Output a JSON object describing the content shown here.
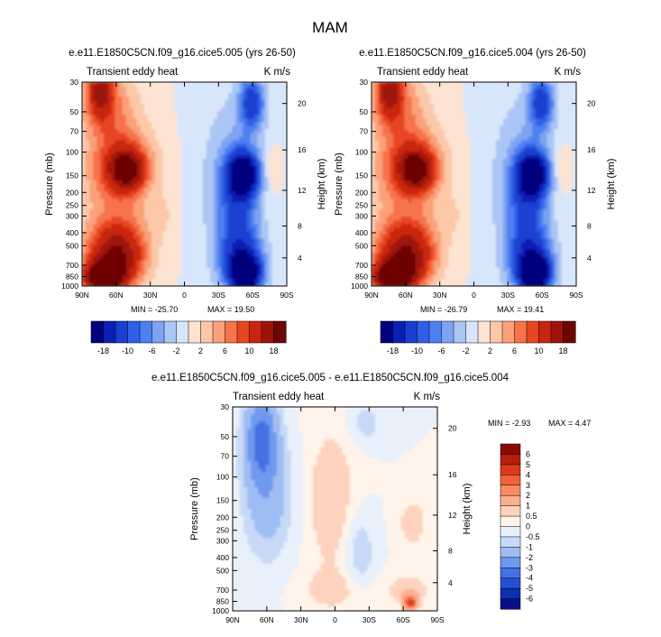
{
  "figure_title": "MAM",
  "units": "K m/s",
  "panel_label": "Transient eddy heat",
  "xlabel": "",
  "ylabel_left": "Pressure (mb)",
  "ylabel_right": "Height (km)",
  "x_ticks": [
    "90N",
    "60N",
    "30N",
    "0",
    "30S",
    "60S",
    "90S"
  ],
  "p_ticks": [
    "30",
    "50",
    "70",
    "100",
    "150",
    "200",
    "250",
    "300",
    "400",
    "500",
    "700",
    "850",
    "1000"
  ],
  "h_ticks": [
    "20",
    "16",
    "12",
    "8",
    "4"
  ],
  "colors": {
    "neg": [
      "#00007f",
      "#0a1fb4",
      "#1a3fd0",
      "#2f5fe6",
      "#4d80f0",
      "#7ea3f2",
      "#abc6f5",
      "#d8e6fb"
    ],
    "pos": [
      "#fde3d2",
      "#fcc8a8",
      "#fba17a",
      "#f6734b",
      "#e84521",
      "#c82511",
      "#9d130a",
      "#6e0606"
    ]
  },
  "chart_data": [
    {
      "type": "heatmap",
      "title": "e.e11.E1850C5CN.f09_g16.cice5.005 (yrs 26-50)",
      "label": "Transient eddy heat",
      "units": "K m/s",
      "x_range": [
        "90N",
        "90S"
      ],
      "y_range_mb": [
        1000,
        30
      ],
      "min_label": "MIN = -25.70",
      "max_label": "MAX = 19.50",
      "min": -25.7,
      "max": 19.5,
      "levels": [
        "-18",
        "-10",
        "-6",
        "-2",
        "2",
        "6",
        "10",
        "18"
      ],
      "contour_levels": [
        -18,
        -14,
        -10,
        -8,
        -6,
        -4,
        -2,
        0,
        2,
        4,
        6,
        8,
        10,
        14,
        18
      ]
    },
    {
      "type": "heatmap",
      "title": "e.e11.E1850C5CN.f09_g16.cice5.004 (yrs 26-50)",
      "label": "Transient eddy heat",
      "units": "K m/s",
      "x_range": [
        "90N",
        "90S"
      ],
      "y_range_mb": [
        1000,
        30
      ],
      "min_label": "MIN = -26.79",
      "max_label": "MAX = 19.41",
      "min": -26.79,
      "max": 19.41,
      "levels": [
        "-18",
        "-10",
        "-6",
        "-2",
        "2",
        "6",
        "10",
        "18"
      ],
      "contour_levels": [
        -18,
        -14,
        -10,
        -8,
        -6,
        -4,
        -2,
        0,
        2,
        4,
        6,
        8,
        10,
        14,
        18
      ]
    },
    {
      "type": "heatmap",
      "title": "e.e11.E1850C5CN.f09_g16.cice5.005 - e.e11.E1850C5CN.f09_g16.cice5.004",
      "label": "Transient eddy heat",
      "units": "K m/s",
      "x_range": [
        "90N",
        "90S"
      ],
      "y_range_mb": [
        1000,
        30
      ],
      "min_label": "MIN = -2.93",
      "max_label": "MAX =  4.47",
      "min": -2.93,
      "max": 4.47,
      "levels": [
        "6",
        "5",
        "4",
        "3",
        "2",
        "1",
        "0.5",
        "0",
        "-0.5",
        "-1",
        "-2",
        "-3",
        "-4",
        "-5",
        "-6"
      ]
    }
  ]
}
